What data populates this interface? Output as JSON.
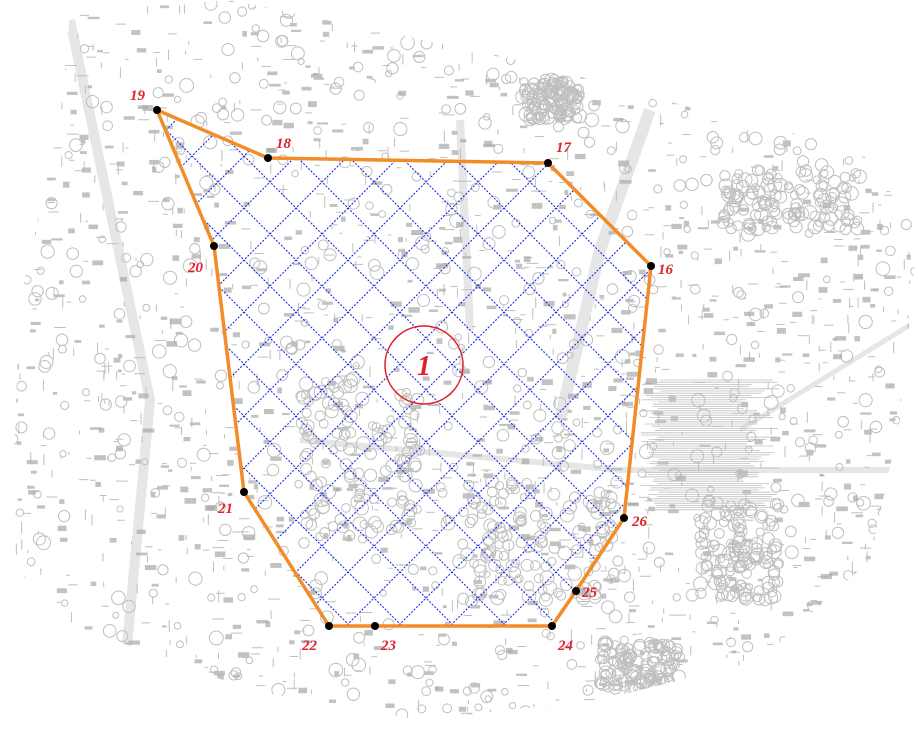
{
  "map": {
    "colors": {
      "background": "#ffffff",
      "basemap": "#bfbfbf",
      "basemap_dark": "#a8a8a8",
      "boundary": "#f28c28",
      "hatch": "#1f2fd6",
      "vertex": "#000000",
      "label": "#e0202a",
      "zone_circle": "#e0202a"
    },
    "zone": {
      "label": "1"
    },
    "vertices": [
      {
        "id": "v19",
        "label": "19"
      },
      {
        "id": "v18",
        "label": "18"
      },
      {
        "id": "v17",
        "label": "17"
      },
      {
        "id": "v16",
        "label": "16"
      },
      {
        "id": "v26",
        "label": "26"
      },
      {
        "id": "v25",
        "label": "25"
      },
      {
        "id": "v24",
        "label": "24"
      },
      {
        "id": "v23",
        "label": "23"
      },
      {
        "id": "v22",
        "label": "22"
      },
      {
        "id": "v21",
        "label": "21"
      },
      {
        "id": "v20",
        "label": "20"
      }
    ]
  }
}
